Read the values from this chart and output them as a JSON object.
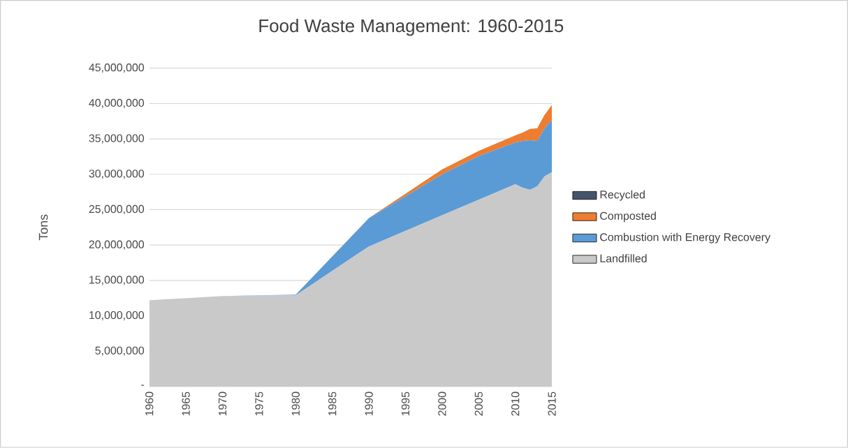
{
  "chart_data": {
    "type": "area",
    "title": "Food Waste Management: 1960-2015",
    "ylabel": "Tons",
    "stacked": true,
    "x": [
      1960,
      1970,
      1980,
      1990,
      2000,
      2005,
      2010,
      2011,
      2012,
      2013,
      2014,
      2015
    ],
    "series": [
      {
        "name": "Landfilled",
        "color": "#c9c9c9",
        "values": [
          12200000,
          12800000,
          12900000,
          19800000,
          24200000,
          26400000,
          28600000,
          28100000,
          27800000,
          28300000,
          29700000,
          30300000
        ]
      },
      {
        "name": "Combustion with Energy Recovery",
        "color": "#5b9bd5",
        "values": [
          0,
          0,
          100000,
          4000000,
          5800000,
          6200000,
          5900000,
          6600000,
          7000000,
          6400000,
          6800000,
          7400000
        ]
      },
      {
        "name": "Composted",
        "color": "#ed7d31",
        "values": [
          0,
          0,
          0,
          0,
          700000,
          700000,
          1000000,
          1200000,
          1600000,
          1800000,
          1900000,
          2100000
        ]
      },
      {
        "name": "Recycled",
        "color": "#44546a",
        "values": [
          null,
          null,
          null,
          null,
          null,
          null,
          null,
          null,
          null,
          null,
          null,
          null
        ]
      }
    ],
    "xlim": [
      1960,
      2015
    ],
    "xticks": [
      1960,
      1965,
      1970,
      1975,
      1980,
      1985,
      1990,
      1995,
      2000,
      2005,
      2010,
      2015
    ],
    "ylim": [
      0,
      45000000
    ],
    "yticks": [
      {
        "value": 0,
        "label": "-"
      },
      {
        "value": 5000000,
        "label": "5,000,000"
      },
      {
        "value": 10000000,
        "label": "10,000,000"
      },
      {
        "value": 15000000,
        "label": "15,000,000"
      },
      {
        "value": 20000000,
        "label": "20,000,000"
      },
      {
        "value": 25000000,
        "label": "25,000,000"
      },
      {
        "value": 30000000,
        "label": "30,000,000"
      },
      {
        "value": 35000000,
        "label": "35,000,000"
      },
      {
        "value": 40000000,
        "label": "40,000,000"
      },
      {
        "value": 45000000,
        "label": "45,000,000"
      }
    ],
    "grid": "y",
    "legend": "right"
  }
}
